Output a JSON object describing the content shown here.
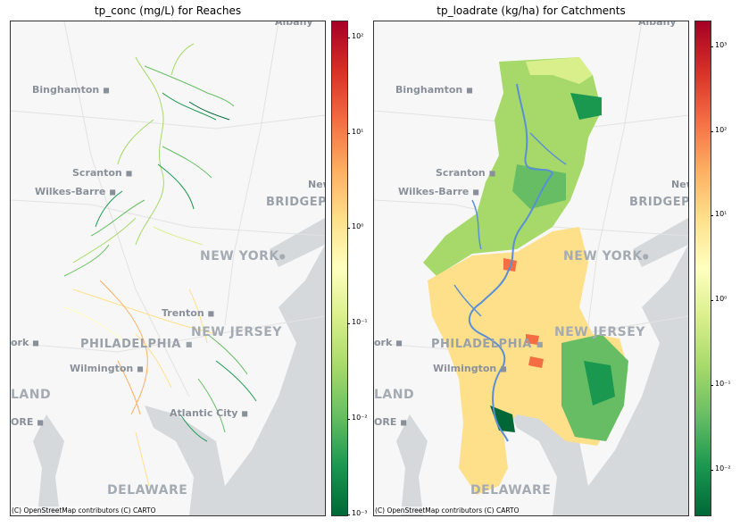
{
  "panels": [
    {
      "title": "tp_conc (mg/L) for Reaches",
      "attribution": "(C) OpenStreetMap contributors (C) CARTO",
      "colorbar": {
        "scale": "log",
        "range": [
          0.001,
          150
        ],
        "ticks": [
          {
            "label": "10⁻³",
            "value": 0.001
          },
          {
            "label": "10⁻²",
            "value": 0.01
          },
          {
            "label": "10⁻¹",
            "value": 0.1
          },
          {
            "label": "10⁰",
            "value": 1
          },
          {
            "label": "10¹",
            "value": 10
          },
          {
            "label": "10²",
            "value": 100
          }
        ],
        "colormap": [
          "#006837",
          "#1a9850",
          "#66bd63",
          "#a6d96a",
          "#d9ef8b",
          "#ffffbf",
          "#fee08b",
          "#fdae61",
          "#f46d43",
          "#d73027",
          "#a50026"
        ]
      }
    },
    {
      "title": "tp_loadrate (kg/ha) for Catchments",
      "attribution": "(C) OpenStreetMap contributors (C) CARTO",
      "colorbar": {
        "scale": "log",
        "range": [
          0.003,
          2000
        ],
        "ticks": [
          {
            "label": "10⁻²",
            "value": 0.01
          },
          {
            "label": "10⁻¹",
            "value": 0.1
          },
          {
            "label": "10⁰",
            "value": 1
          },
          {
            "label": "10¹",
            "value": 10
          },
          {
            "label": "10²",
            "value": 100
          },
          {
            "label": "10³",
            "value": 1000
          }
        ],
        "colormap": [
          "#006837",
          "#1a9850",
          "#66bd63",
          "#a6d96a",
          "#d9ef8b",
          "#ffffbf",
          "#fee08b",
          "#fdae61",
          "#f46d43",
          "#d73027",
          "#a50026"
        ]
      }
    }
  ],
  "places": {
    "albany": "Albany",
    "binghamton": "Binghamton",
    "scranton": "Scranton",
    "wilkes_barre": "Wilkes-Barre",
    "new_york": "NEW YORK",
    "bridgeport": "BRIDGEPOR",
    "new_partial": "New",
    "trenton": "Trenton",
    "philadelphia": "PHILADELPHIA",
    "new_jersey": "NEW JERSEY",
    "york_partial": "ork",
    "wilmington": "Wilmington",
    "maryland_partial": "LAND",
    "baltimore_partial": "ORE",
    "atlantic_city": "Atlantic City",
    "delaware": "DELAWARE"
  },
  "colors": {
    "river": "#5a8fd6",
    "water": "#d5d9dc",
    "basemap": "#f7f7f7"
  }
}
